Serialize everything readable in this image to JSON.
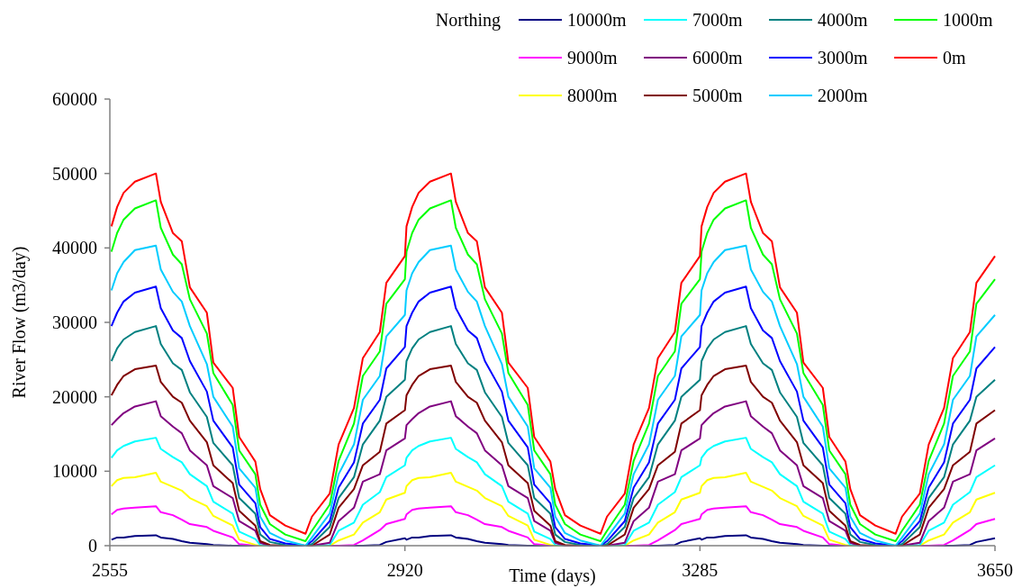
{
  "chart_data": {
    "type": "line",
    "xlabel": "Time (days)",
    "ylabel": "River Flow (m3/day)",
    "legend_title": "Northing",
    "legend": "top right",
    "xlim": [
      2555,
      3650
    ],
    "xticks": [
      2555,
      2920,
      3285,
      3650
    ],
    "ylim": [
      0,
      60000
    ],
    "yticks": [
      0,
      10000,
      20000,
      30000,
      40000,
      50000,
      60000
    ],
    "x": [
      2557,
      2564,
      2572,
      2586,
      2612,
      2618,
      2633,
      2644,
      2654,
      2675,
      2683,
      2707,
      2715,
      2735,
      2741,
      2753,
      2772,
      2797,
      2805,
      2827,
      2838,
      2857,
      2868,
      2889,
      2897,
      2920,
      2922,
      2929,
      2937,
      2951,
      2977,
      2983,
      2998,
      3009,
      3019,
      3040,
      3048,
      3072,
      3080,
      3100,
      3106,
      3118,
      3137,
      3162,
      3170,
      3192,
      3203,
      3222,
      3233,
      3254,
      3262,
      3285,
      3287,
      3294,
      3302,
      3316,
      3342,
      3348,
      3363,
      3374,
      3384,
      3405,
      3413,
      3437,
      3445,
      3465,
      3471,
      3483,
      3502,
      3527,
      3535,
      3557,
      3568,
      3587,
      3598,
      3619,
      3627,
      3650
    ],
    "series": [
      {
        "name": "10000m",
        "color": "#000080",
        "values": [
          800,
          1100,
          1100,
          1300,
          1400,
          1100,
          900,
          600,
          400,
          200,
          100,
          0,
          0,
          0,
          0,
          0,
          0,
          0,
          0,
          0,
          0,
          0,
          0,
          100,
          500,
          1000,
          800,
          1100,
          1100,
          1300,
          1400,
          1100,
          900,
          600,
          400,
          200,
          100,
          0,
          0,
          0,
          0,
          0,
          0,
          0,
          0,
          0,
          0,
          0,
          0,
          100,
          500,
          1000,
          800,
          1100,
          1100,
          1300,
          1400,
          1100,
          900,
          600,
          400,
          200,
          100,
          0,
          0,
          0,
          0,
          0,
          0,
          0,
          0,
          0,
          0,
          0,
          0,
          100,
          500,
          1000
        ]
      },
      {
        "name": "9000m",
        "color": "#ff00ff",
        "values": [
          4200,
          4800,
          5000,
          5100,
          5300,
          4500,
          4100,
          3500,
          2900,
          2500,
          2000,
          1100,
          200,
          0,
          0,
          0,
          0,
          0,
          0,
          0,
          0,
          100,
          700,
          2100,
          2900,
          3600,
          4200,
          4800,
          5000,
          5100,
          5300,
          4500,
          4100,
          3500,
          2900,
          2500,
          2000,
          1100,
          200,
          0,
          0,
          0,
          0,
          0,
          0,
          0,
          0,
          100,
          700,
          2100,
          2900,
          3600,
          4200,
          4800,
          5000,
          5100,
          5300,
          4500,
          4100,
          3500,
          2900,
          2500,
          2000,
          1100,
          200,
          0,
          0,
          0,
          0,
          0,
          0,
          0,
          0,
          100,
          700,
          2100,
          2900,
          3600
        ]
      },
      {
        "name": "8000m",
        "color": "#ffff00",
        "values": [
          8000,
          8800,
          9100,
          9200,
          9800,
          8600,
          7900,
          7400,
          6400,
          5300,
          4000,
          2700,
          800,
          100,
          0,
          0,
          0,
          0,
          0,
          0,
          700,
          1500,
          3100,
          4500,
          6200,
          7100,
          8000,
          8800,
          9100,
          9200,
          9800,
          8600,
          7900,
          7400,
          6400,
          5300,
          4000,
          2700,
          800,
          100,
          0,
          0,
          0,
          0,
          0,
          0,
          700,
          1500,
          3100,
          4500,
          6200,
          7100,
          8000,
          8800,
          9100,
          9200,
          9800,
          8600,
          7900,
          7400,
          6400,
          5300,
          4000,
          2700,
          800,
          100,
          0,
          0,
          0,
          0,
          0,
          0,
          700,
          1500,
          3100,
          4500,
          6200,
          7100
        ]
      },
      {
        "name": "7000m",
        "color": "#00ffff",
        "values": [
          11800,
          12800,
          13400,
          14000,
          14500,
          13000,
          11900,
          11200,
          9600,
          8000,
          5900,
          4300,
          1900,
          900,
          100,
          0,
          0,
          0,
          0,
          100,
          2000,
          3100,
          5500,
          7200,
          9200,
          10800,
          11800,
          12800,
          13400,
          14000,
          14500,
          13000,
          11900,
          11200,
          9600,
          8000,
          5900,
          4300,
          1900,
          900,
          100,
          0,
          0,
          0,
          0,
          100,
          2000,
          3100,
          5500,
          7200,
          9200,
          10800,
          11800,
          12800,
          13400,
          14000,
          14500,
          13000,
          11900,
          11200,
          9600,
          8000,
          5900,
          4300,
          1900,
          900,
          100,
          0,
          0,
          0,
          0,
          100,
          2000,
          3100,
          5500,
          7200,
          9200,
          10800
        ]
      },
      {
        "name": "6000m",
        "color": "#800080",
        "values": [
          16200,
          17000,
          17800,
          18700,
          19400,
          17400,
          16000,
          15100,
          12800,
          10800,
          8000,
          6400,
          3300,
          2000,
          400,
          0,
          0,
          0,
          0,
          400,
          3300,
          5100,
          8600,
          9600,
          12800,
          14400,
          16200,
          17000,
          17800,
          18700,
          19400,
          17400,
          16000,
          15100,
          12800,
          10800,
          8000,
          6400,
          3300,
          2000,
          400,
          0,
          0,
          0,
          0,
          400,
          3300,
          5100,
          8600,
          9600,
          12800,
          14400,
          16200,
          17000,
          17800,
          18700,
          19400,
          17400,
          16000,
          15100,
          12800,
          10800,
          8000,
          6400,
          3300,
          2000,
          400,
          0,
          0,
          0,
          0,
          400,
          3300,
          5100,
          8600,
          9600,
          12800,
          14400
        ]
      },
      {
        "name": "5000m",
        "color": "#800000",
        "values": [
          20200,
          21600,
          22800,
          23700,
          24200,
          22000,
          20000,
          19200,
          16800,
          13900,
          10800,
          8400,
          4700,
          2700,
          600,
          100,
          0,
          0,
          0,
          1500,
          5100,
          7600,
          10800,
          12600,
          16400,
          18200,
          20200,
          21600,
          22800,
          23700,
          24200,
          22000,
          20000,
          19200,
          16800,
          13900,
          10800,
          8400,
          4700,
          2700,
          600,
          100,
          0,
          0,
          0,
          1500,
          5100,
          7600,
          10800,
          12600,
          16400,
          18200,
          20200,
          21600,
          22800,
          23700,
          24200,
          22000,
          20000,
          19200,
          16800,
          13900,
          10800,
          8400,
          4700,
          2700,
          600,
          100,
          0,
          0,
          0,
          1500,
          5100,
          7600,
          10800,
          12600,
          16400,
          18200
        ]
      },
      {
        "name": "4000m",
        "color": "#008080",
        "values": [
          24800,
          26500,
          27700,
          28700,
          29500,
          27100,
          24500,
          23600,
          20600,
          17300,
          13800,
          10800,
          6400,
          4300,
          1500,
          500,
          100,
          0,
          200,
          2500,
          6400,
          9200,
          13600,
          16800,
          20000,
          22300,
          24800,
          26500,
          27700,
          28700,
          29500,
          27100,
          24500,
          23600,
          20600,
          17300,
          13800,
          10800,
          6400,
          4300,
          1500,
          500,
          100,
          0,
          200,
          2500,
          6400,
          9200,
          13600,
          16800,
          20000,
          22300,
          24800,
          26500,
          27700,
          28700,
          29500,
          27100,
          24500,
          23600,
          20600,
          17300,
          13800,
          10800,
          6400,
          4300,
          1500,
          500,
          100,
          0,
          200,
          2500,
          6400,
          9200,
          13600,
          16800,
          20000,
          22300
        ]
      },
      {
        "name": "3000m",
        "color": "#0000ff",
        "values": [
          29500,
          31300,
          32800,
          34000,
          34800,
          31900,
          28900,
          27900,
          24800,
          20700,
          16800,
          13200,
          8200,
          5700,
          2500,
          900,
          300,
          0,
          600,
          3300,
          7800,
          11200,
          16400,
          19600,
          23800,
          26700,
          29500,
          31300,
          32800,
          34000,
          34800,
          31900,
          28900,
          27900,
          24800,
          20700,
          16800,
          13200,
          8200,
          5700,
          2500,
          900,
          300,
          0,
          600,
          3300,
          7800,
          11200,
          16400,
          19600,
          23800,
          26700,
          29500,
          31300,
          32800,
          34000,
          34800,
          31900,
          28900,
          27900,
          24800,
          20700,
          16800,
          13200,
          8200,
          5700,
          2500,
          900,
          300,
          0,
          600,
          3300,
          7800,
          11200,
          16400,
          19600,
          23800,
          26700
        ]
      },
      {
        "name": "2000m",
        "color": "#00ccff",
        "values": [
          34300,
          36600,
          38100,
          39700,
          40300,
          37100,
          34100,
          32800,
          29500,
          24400,
          20000,
          16000,
          10400,
          7800,
          3900,
          1700,
          700,
          0,
          1100,
          4300,
          9600,
          13600,
          19600,
          22800,
          28100,
          31000,
          34300,
          36600,
          38100,
          39700,
          40300,
          37100,
          34100,
          32800,
          29500,
          24400,
          20000,
          16000,
          10400,
          7800,
          3900,
          1700,
          700,
          0,
          1100,
          4300,
          9600,
          13600,
          19600,
          22800,
          28100,
          31000,
          34300,
          36600,
          38100,
          39700,
          40300,
          37100,
          34100,
          32800,
          29500,
          24400,
          20000,
          16000,
          10400,
          7800,
          3900,
          1700,
          700,
          0,
          1100,
          4300,
          9600,
          13600,
          19600,
          22800,
          28100,
          31000
        ]
      },
      {
        "name": "1000m",
        "color": "#00ff00",
        "values": [
          39500,
          42000,
          43800,
          45300,
          46400,
          42700,
          39100,
          37800,
          33100,
          28500,
          23200,
          18900,
          12800,
          9600,
          5500,
          2900,
          1500,
          600,
          2000,
          5500,
          11400,
          16400,
          22800,
          26100,
          32500,
          35800,
          39500,
          42000,
          43800,
          45300,
          46400,
          42700,
          39100,
          37800,
          33100,
          28500,
          23200,
          18900,
          12800,
          9600,
          5500,
          2900,
          1500,
          600,
          2000,
          5500,
          11400,
          16400,
          22800,
          26100,
          32500,
          35800,
          39500,
          42000,
          43800,
          45300,
          46400,
          42700,
          39100,
          37800,
          33100,
          28500,
          23200,
          18900,
          12800,
          9600,
          5500,
          2900,
          1500,
          600,
          2000,
          5500,
          11400,
          16400,
          22800,
          26100,
          32500,
          35800
        ]
      },
      {
        "name": "0m",
        "color": "#ff0000",
        "values": [
          42900,
          45500,
          47400,
          48900,
          50000,
          46200,
          42000,
          40900,
          34700,
          31300,
          24600,
          21200,
          14600,
          11300,
          7600,
          4100,
          2700,
          1600,
          3900,
          7000,
          13600,
          18500,
          25200,
          28700,
          35300,
          38900,
          42900,
          45500,
          47400,
          48900,
          50000,
          46200,
          42000,
          40900,
          34700,
          31300,
          24600,
          21200,
          14600,
          11300,
          7600,
          4100,
          2700,
          1600,
          3900,
          7000,
          13600,
          18500,
          25200,
          28700,
          35300,
          38900,
          42900,
          45500,
          47400,
          48900,
          50000,
          46200,
          42000,
          40900,
          34700,
          31300,
          24600,
          21200,
          14600,
          11300,
          7600,
          4100,
          2700,
          1600,
          3900,
          7000,
          13600,
          18500,
          25200,
          28700,
          35300,
          38900
        ]
      }
    ]
  }
}
